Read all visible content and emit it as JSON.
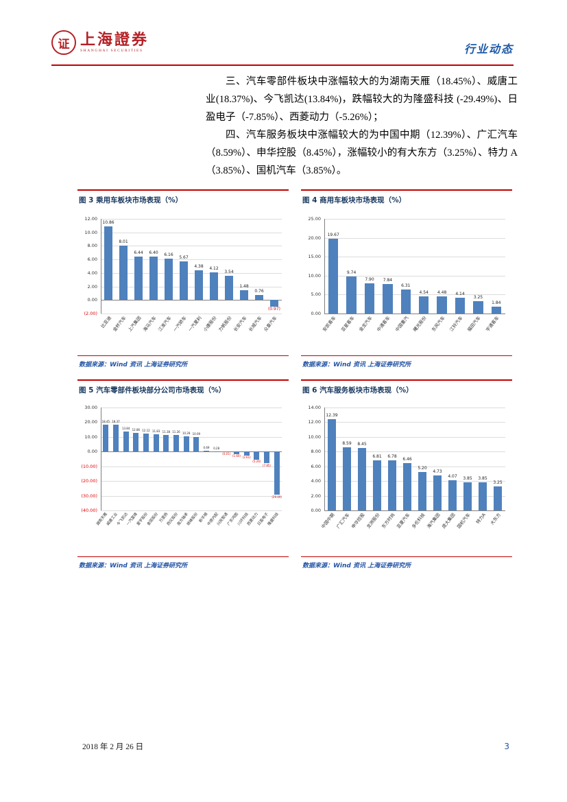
{
  "header": {
    "logo": {
      "seal_glyph": "证",
      "name": "上海證券",
      "subtitle": "SHANGHAI SECURITIES"
    },
    "section_label": "行业动态"
  },
  "body": {
    "paragraphs": [
      "三、汽车零部件板块中涨幅较大的为湖南天雁（18.45%）、威唐工业(18.37%)、今飞凯达(13.84%)，跌幅较大的为隆盛科技 (-29.49%)、日盈电子（-7.85%）、西菱动力（-5.26%）；",
      "四、汽车服务板块中涨幅较大的为中国中期（12.39%）、广汇汽车（8.59%）、申华控股（8.45%），涨幅较小的有大东方（3.25%）、特力 A（3.85%）、国机汽车（3.85%）。"
    ]
  },
  "chart_data": [
    {
      "type": "bar",
      "title": "图 3  乘用车板块市场表现（%）",
      "categories": [
        "比亚迪",
        "金杯汽车",
        "上汽集团",
        "海马汽车",
        "江淮汽车",
        "一汽轿车",
        "一汽夏利",
        "小康股份",
        "力帆股份",
        "长安汽车",
        "长城汽车",
        "众泰汽车"
      ],
      "values": [
        10.86,
        8.01,
        6.44,
        6.4,
        6.16,
        5.67,
        4.38,
        4.12,
        3.54,
        1.48,
        0.76,
        -0.97
      ],
      "ylim": [
        -2,
        12
      ],
      "yticks": [
        12,
        10,
        8,
        6,
        4,
        2,
        0,
        -2
      ],
      "grid": true,
      "legend": "none"
    },
    {
      "type": "bar",
      "title": "图 4  商用车板块市场表现（%）",
      "categories": [
        "安凯客车",
        "亚星客车",
        "金龙汽车",
        "中通客车",
        "中国重汽",
        "曙光股份",
        "东风汽车",
        "江铃汽车",
        "福田汽车",
        "宇通客车"
      ],
      "values": [
        19.67,
        9.74,
        7.9,
        7.84,
        6.31,
        4.54,
        4.48,
        4.14,
        3.25,
        1.84
      ],
      "ylim": [
        0,
        25
      ],
      "yticks": [
        25,
        20,
        15,
        10,
        5,
        0
      ],
      "grid": true,
      "legend": "none"
    },
    {
      "type": "bar",
      "title": "图 5  汽车零部件板块部分公司市场表现（%）",
      "categories": [
        "湖南天雁",
        "威唐工业",
        "今飞凯达",
        "一汽富维",
        "星宇股份",
        "金固股份",
        "万里扬",
        "西仪股份",
        "南方轴承",
        "继峰股份",
        "新华锦",
        "中原内配",
        "兴民智通",
        "广东鸿图",
        "川环科技",
        "西菱动力",
        "日盈电子",
        "隆盛科技"
      ],
      "values": [
        18.45,
        18.37,
        13.84,
        12.86,
        12.12,
        11.83,
        11.38,
        11.26,
        10.28,
        10.09,
        0.69,
        0.28,
        -0.01,
        -1.6,
        -2.61,
        -5.26,
        -7.85,
        -29.49
      ],
      "ylim": [
        -40,
        30
      ],
      "yticks": [
        30,
        20,
        10,
        0,
        -10,
        -20,
        -30,
        -40
      ],
      "grid": true,
      "legend": "none"
    },
    {
      "type": "bar",
      "title": "图 6  汽车服务板块市场表现（%）",
      "categories": [
        "中国中期",
        "广汇汽车",
        "申华控股",
        "龙洲股份",
        "东方时尚",
        "亚夏汽车",
        "多伦科技",
        "海汽集团",
        "庞大集团",
        "国机汽车",
        "特力A",
        "大东方"
      ],
      "values": [
        12.39,
        8.59,
        8.45,
        6.81,
        6.78,
        6.46,
        5.2,
        4.73,
        4.07,
        3.85,
        3.85,
        3.25
      ],
      "ylim": [
        0,
        14
      ],
      "yticks": [
        14,
        12,
        10,
        8,
        6,
        4,
        2,
        0
      ],
      "grid": true,
      "legend": "none"
    }
  ],
  "source_note": "数据来源：Wind 资讯 上海证券研究所",
  "footer": {
    "date": "2018 年 2 月 26 日",
    "page_number": "3"
  },
  "colors": {
    "accent_red": "#C00000",
    "bar_blue": "#4F81BD",
    "negative_red": "#E00000",
    "title_navy": "#17375E",
    "source_blue": "#2353A4",
    "logo_red": "#B42025",
    "header_blue": "#1E5AA8"
  }
}
